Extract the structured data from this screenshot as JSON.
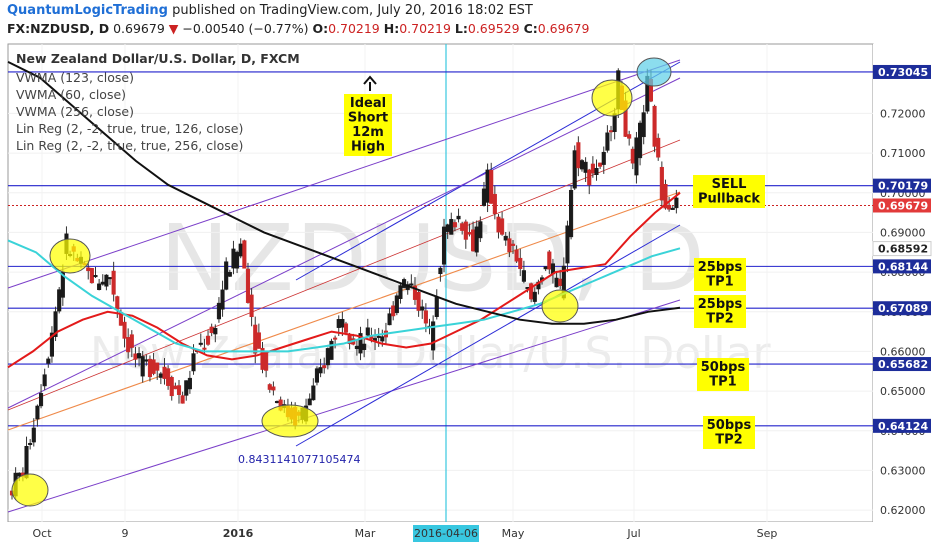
{
  "header": {
    "brand": "QuantumLogicTrading",
    "published": "published on TradingView.com, July 20, 2016 18:02 EST",
    "symbol": "FX:NZDUSD, D",
    "last": "0.69679",
    "arrow": "▼",
    "change": "−0.00540 (−0.77%)",
    "o_label": "O:",
    "o_value": "0.70219",
    "h_label": "H:",
    "h_value": "0.70219",
    "l_label": "L:",
    "l_value": "0.69529",
    "c_label": "C:",
    "c_value": "0.69679"
  },
  "legend": {
    "title": "New Zealand Dollar/U.S. Dollar, D, FXCM",
    "items": [
      "VWMA (123, close)",
      "VWMA (60, close)",
      "VWMA (256, close)",
      "Lin Reg (2, -2, true, true, 126, close)",
      "Lin Reg (2, -2, true, true, 256, close)"
    ]
  },
  "watermark": {
    "symbol": "NZDUSD, D",
    "name": "New Zealand Dollar/U.S. Dollar"
  },
  "annotations": {
    "ideal": "Ideal\nShort\n12m\nHigh",
    "sell": "SELL\nPullback",
    "tp25_1": "25bps\nTP1",
    "tp25_2": "25bps\nTP2",
    "tp50_1": "50bps\nTP1",
    "tp50_2": "50bps\nTP2",
    "linreg_value": "0.8431141077105474"
  },
  "colors": {
    "up": "#1a1a1a",
    "down": "#cc2a2a",
    "wick": "#333333",
    "vwma60": "#e31a1a",
    "vwma123": "#3ad3d8",
    "vwma256": "#111111",
    "hline": "#2222cc",
    "channel": "#2b2bd6",
    "channel2": "#7b3fc9",
    "highlight": "#ffff00",
    "crosshair": "#38c7e0",
    "price_box": "#1d2d9a",
    "last_box": "#e23a3a"
  },
  "chart_data": {
    "type": "candlestick",
    "title": "New Zealand Dollar/U.S. Dollar, D, FXCM",
    "ylim": [
      0.617,
      0.7375
    ],
    "x_ticks": [
      "Oct",
      "9",
      "2016",
      "Mar",
      "2016-04-06",
      "May",
      "Jul",
      "Sep"
    ],
    "y_ticks": [
      0.62,
      0.63,
      0.64,
      0.65,
      0.66,
      0.67,
      0.68,
      0.69,
      0.7,
      0.71,
      0.72
    ],
    "y_tick_labels": [
      "0.62000",
      "0.63000",
      "0.64000",
      "0.65000",
      "0.66000",
      "0.67000",
      "0.68000",
      "0.69000",
      "0.70000",
      "0.71000",
      "0.72000"
    ],
    "horizontal_levels": [
      {
        "value": 0.73045,
        "label": "0.73045"
      },
      {
        "value": 0.70179,
        "label": "0.70179"
      },
      {
        "value": 0.68144,
        "label": "0.68144"
      },
      {
        "value": 0.67089,
        "label": "0.67089"
      },
      {
        "value": 0.65682,
        "label": "0.65682"
      },
      {
        "value": 0.64124,
        "label": "0.64124"
      }
    ],
    "markers": [
      {
        "value": 0.69679,
        "label": "0.69679",
        "kind": "last"
      },
      {
        "value": 0.68592,
        "label": "0.68592",
        "kind": "vwma"
      }
    ],
    "close_path": [
      [
        0.6335,
        0.6245
      ],
      [
        0.6425,
        0.63
      ],
      [
        0.652,
        0.647
      ],
      [
        0.67,
        0.665
      ],
      [
        0.672,
        0.687
      ],
      [
        0.686,
        0.681
      ],
      [
        0.69,
        0.678
      ],
      [
        0.683,
        0.679
      ],
      [
        0.67,
        0.664
      ],
      [
        0.66,
        0.656
      ],
      [
        0.652,
        0.657
      ],
      [
        0.65,
        0.653
      ],
      [
        0.655,
        0.648
      ],
      [
        0.658,
        0.661
      ],
      [
        0.67,
        0.664
      ],
      [
        0.678,
        0.68
      ],
      [
        0.682,
        0.687
      ],
      [
        0.67,
        0.663
      ],
      [
        0.66,
        0.652
      ],
      [
        0.648,
        0.645
      ],
      [
        0.644,
        0.643
      ],
      [
        0.646,
        0.65
      ],
      [
        0.654,
        0.66
      ],
      [
        0.665,
        0.67
      ],
      [
        0.665,
        0.661
      ],
      [
        0.67,
        0.664
      ],
      [
        0.672,
        0.665
      ],
      [
        0.674,
        0.678
      ],
      [
        0.68,
        0.675
      ],
      [
        0.67,
        0.664
      ],
      [
        0.68,
        0.69
      ],
      [
        0.686,
        0.694
      ],
      [
        0.68,
        0.687
      ],
      [
        0.692,
        0.703
      ],
      [
        0.695,
        0.688
      ],
      [
        0.69,
        0.684
      ],
      [
        0.678,
        0.672
      ],
      [
        0.675,
        0.683
      ],
      [
        0.672,
        0.675
      ],
      [
        0.695,
        0.71
      ],
      [
        0.715,
        0.705
      ],
      [
        0.7,
        0.708
      ],
      [
        0.72,
        0.728
      ],
      [
        0.715,
        0.705
      ],
      [
        0.72,
        0.727
      ],
      [
        0.71,
        0.7
      ],
      [
        0.697,
        0.6968
      ]
    ],
    "series": [
      {
        "name": "VWMA (60, close)",
        "color": "#e31a1a",
        "values": [
          0.656,
          0.66,
          0.665,
          0.668,
          0.67,
          0.669,
          0.666,
          0.662,
          0.659,
          0.658,
          0.659,
          0.661,
          0.663,
          0.665,
          0.664,
          0.662,
          0.661,
          0.662,
          0.665,
          0.668,
          0.672,
          0.676,
          0.68,
          0.681,
          0.682,
          0.689,
          0.695,
          0.7
        ]
      },
      {
        "name": "VWMA (123, close)",
        "color": "#3ad3d8",
        "values": [
          0.688,
          0.685,
          0.679,
          0.674,
          0.67,
          0.666,
          0.662,
          0.66,
          0.66,
          0.66,
          0.66,
          0.661,
          0.662,
          0.664,
          0.665,
          0.666,
          0.667,
          0.668,
          0.67,
          0.672,
          0.675,
          0.678,
          0.681,
          0.684,
          0.686
        ]
      },
      {
        "name": "VWMA (256, close)",
        "color": "#111111",
        "values": [
          0.733,
          0.729,
          0.722,
          0.715,
          0.708,
          0.702,
          0.698,
          0.694,
          0.69,
          0.687,
          0.684,
          0.681,
          0.678,
          0.675,
          0.672,
          0.67,
          0.668,
          0.667,
          0.667,
          0.668,
          0.67,
          0.671
        ]
      }
    ]
  }
}
